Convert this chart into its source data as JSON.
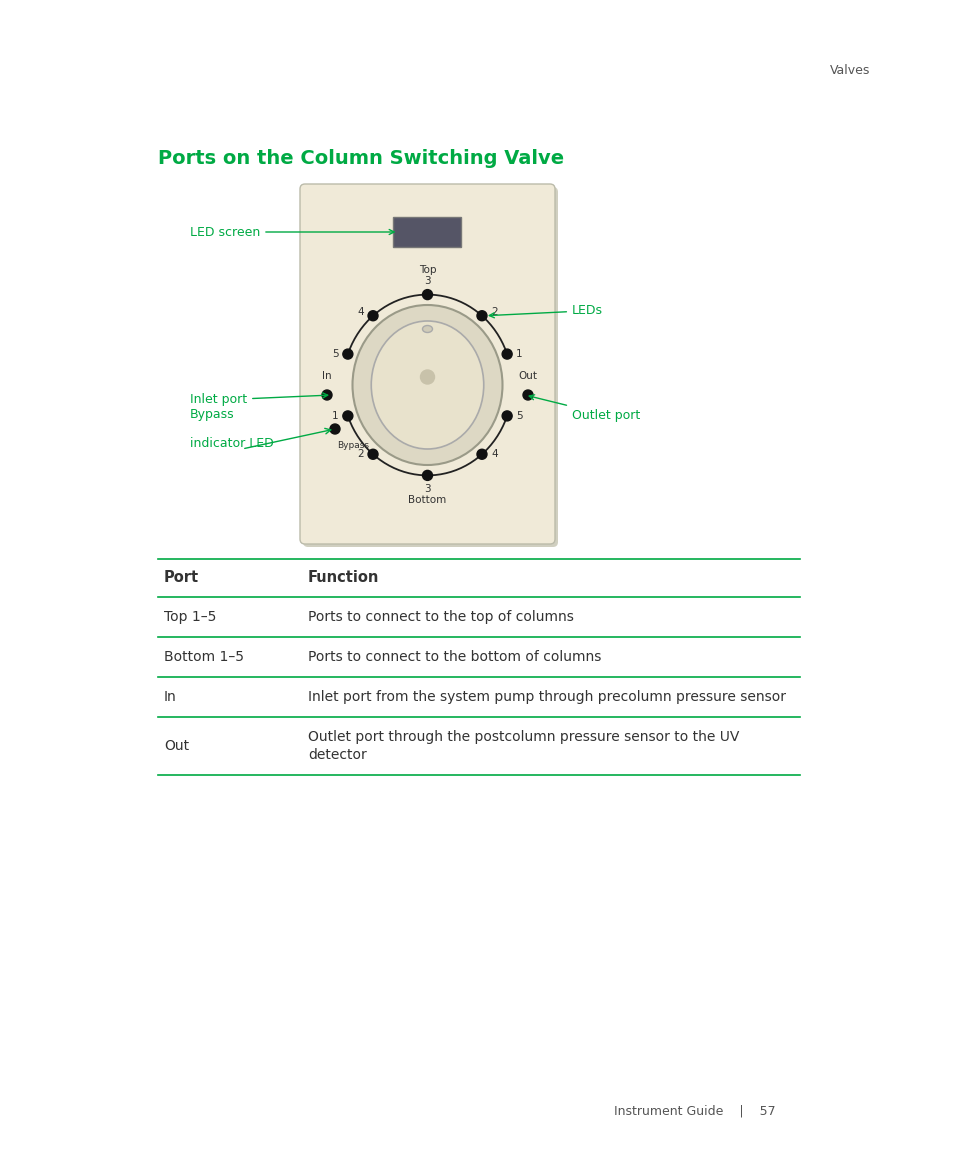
{
  "page_header_right": "Valves",
  "section_title": "Ports on the Column Switching Valve",
  "section_title_color": "#00aa44",
  "table_headers": [
    "Port",
    "Function"
  ],
  "table_rows": [
    [
      "Top 1–5",
      "Ports to connect to the top of columns"
    ],
    [
      "Bottom 1–5",
      "Ports to connect to the bottom of columns"
    ],
    [
      "In",
      "Inlet port from the system pump through precolumn pressure sensor"
    ],
    [
      "Out",
      "Outlet port through the postcolumn pressure sensor to the UV\ndetector"
    ]
  ],
  "footer_text": "Instrument Guide    |    57",
  "green_color": "#00aa44",
  "table_line_color": "#00aa44",
  "text_color": "#333333",
  "bg_color": "#ffffff",
  "label_led_screen": "LED screen",
  "label_leds": "LEDs",
  "label_inlet_port": "Inlet port",
  "label_outlet_port": "Outlet port",
  "label_bypass_line1": "Bypass",
  "label_bypass_line2": "indicator LED",
  "device_bg": "#f0ead8",
  "device_border": "#cccccc"
}
